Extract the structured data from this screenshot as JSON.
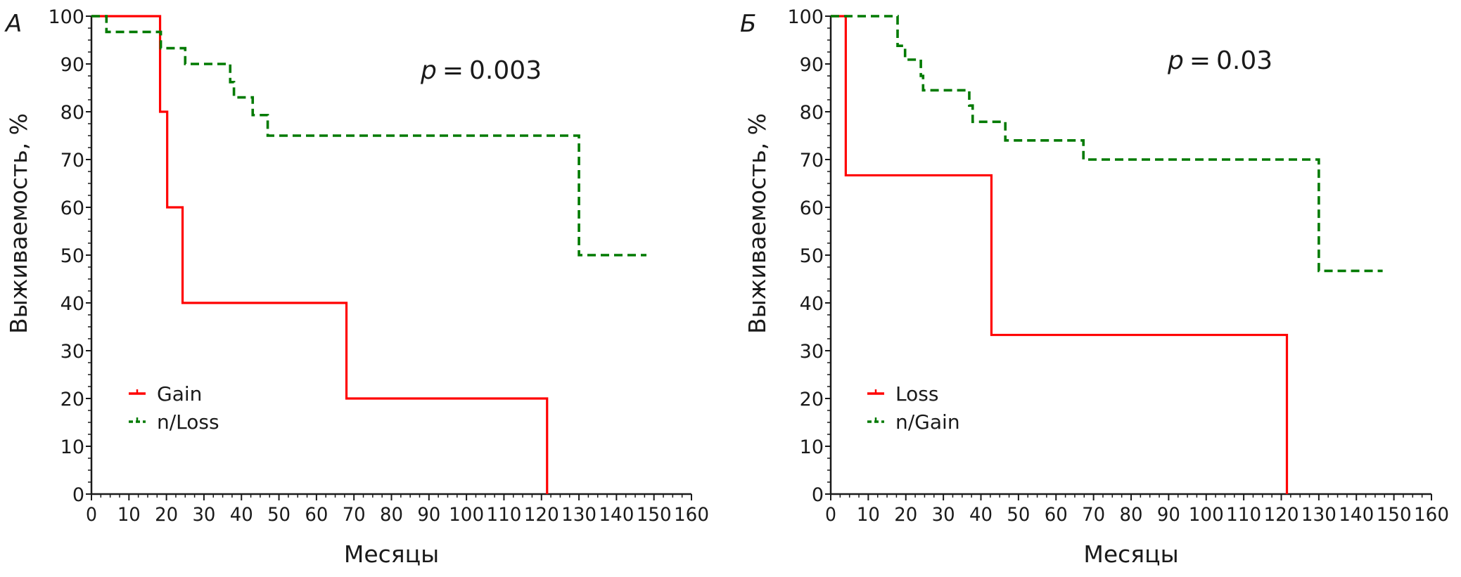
{
  "chart_data": [
    {
      "type": "line",
      "subtype": "kaplan-meier step",
      "panel_label": "А",
      "annotation": "p = 0.003",
      "annotation_parts": {
        "p": "p",
        "eq": "=",
        "value": "0.003"
      },
      "xlabel": "Месяцы",
      "ylabel": "Выживаемость, %",
      "xlim": [
        0,
        160
      ],
      "ylim": [
        0,
        100
      ],
      "xticks": [
        0,
        10,
        20,
        30,
        40,
        50,
        60,
        70,
        80,
        90,
        100,
        110,
        120,
        130,
        140,
        150,
        160
      ],
      "yticks": [
        0,
        10,
        20,
        30,
        40,
        50,
        60,
        70,
        80,
        90,
        100
      ],
      "grid": false,
      "legend_position": "lower-left",
      "series": [
        {
          "name": "Gain",
          "color": "#ff0000",
          "style": "solid",
          "steps": [
            [
              0,
              100
            ],
            [
              18.3,
              80
            ],
            [
              20.2,
              60
            ],
            [
              24.3,
              40
            ],
            [
              68,
              20
            ],
            [
              121.5,
              0
            ]
          ],
          "end_x": 121.5
        },
        {
          "name": "n/Loss",
          "color": "#007a00",
          "style": "dashed",
          "steps": [
            [
              0,
              100
            ],
            [
              4,
              96.7
            ],
            [
              18.5,
              93.3
            ],
            [
              25,
              90
            ],
            [
              37,
              86.2
            ],
            [
              38,
              83
            ],
            [
              43,
              79.3
            ],
            [
              47,
              75
            ],
            [
              130,
              50
            ]
          ],
          "end_x": 148
        }
      ]
    },
    {
      "type": "line",
      "subtype": "kaplan-meier step",
      "panel_label": "Б",
      "annotation": "p = 0.03",
      "annotation_parts": {
        "p": "p",
        "eq": "=",
        "value": "0.03"
      },
      "xlabel": "Месяцы",
      "ylabel": "Выживаемость, %",
      "xlim": [
        0,
        160
      ],
      "ylim": [
        0,
        100
      ],
      "xticks": [
        0,
        10,
        20,
        30,
        40,
        50,
        60,
        70,
        80,
        90,
        100,
        110,
        120,
        130,
        140,
        150,
        160
      ],
      "yticks": [
        0,
        10,
        20,
        30,
        40,
        50,
        60,
        70,
        80,
        90,
        100
      ],
      "grid": false,
      "legend_position": "lower-left",
      "series": [
        {
          "name": "Loss",
          "color": "#ff0000",
          "style": "solid",
          "steps": [
            [
              0,
              100
            ],
            [
              4,
              66.7
            ],
            [
              42.8,
              33.3
            ],
            [
              121.5,
              0
            ]
          ],
          "end_x": 121.5
        },
        {
          "name": "n/Gain",
          "color": "#007a00",
          "style": "dashed",
          "steps": [
            [
              0,
              100
            ],
            [
              17.8,
              93.8
            ],
            [
              19.8,
              90.9
            ],
            [
              24,
              87.5
            ],
            [
              24.6,
              84.5
            ],
            [
              36.9,
              81.3
            ],
            [
              37.8,
              77.9
            ],
            [
              46.5,
              74
            ],
            [
              67.3,
              70
            ],
            [
              130,
              46.7
            ]
          ],
          "end_x": 147
        }
      ]
    }
  ]
}
